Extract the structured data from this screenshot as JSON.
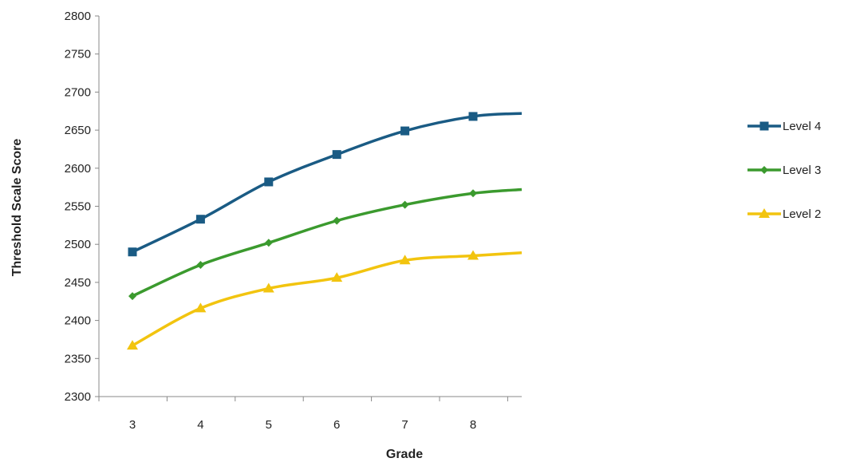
{
  "chart_data": {
    "type": "line",
    "title": "",
    "xlabel": "Grade",
    "ylabel": "Threshold Scale Score",
    "categories": [
      "3",
      "4",
      "5",
      "6",
      "7",
      "8"
    ],
    "x_extends_right": true,
    "ylim": [
      2300,
      2800
    ],
    "yticks": [
      2300,
      2350,
      2400,
      2450,
      2500,
      2550,
      2600,
      2650,
      2700,
      2750,
      2800
    ],
    "grid": false,
    "legend": "right",
    "series": [
      {
        "name": "Level 4",
        "color": "#1a5b84",
        "marker": "square",
        "values": [
          2490,
          2533,
          2582,
          2618,
          2649,
          2668
        ],
        "extends_to": 2672
      },
      {
        "name": "Level 3",
        "color": "#3b9a2e",
        "marker": "diamond",
        "values": [
          2432,
          2473,
          2502,
          2531,
          2552,
          2567
        ],
        "extends_to": 2572
      },
      {
        "name": "Level 2",
        "color": "#f2c40f",
        "marker": "triangle",
        "values": [
          2367,
          2416,
          2442,
          2456,
          2479,
          2485
        ],
        "extends_to": 2489
      }
    ]
  }
}
